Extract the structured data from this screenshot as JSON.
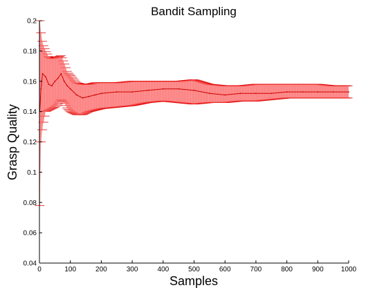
{
  "chart_data": {
    "type": "line",
    "title": "Bandit Sampling",
    "xlabel": "Samples",
    "ylabel": "Grasp Quality",
    "xlim": [
      0,
      1000
    ],
    "ylim": [
      0.04,
      0.2
    ],
    "xticks": [
      0,
      100,
      200,
      300,
      400,
      500,
      600,
      700,
      800,
      900,
      1000
    ],
    "yticks": [
      0.04,
      0.06,
      0.08,
      0.1,
      0.12,
      0.14,
      0.16,
      0.18,
      0.2
    ],
    "grid": false,
    "colors": {
      "band_fill": "#ff6b6b",
      "error_bar": "#e00000",
      "mean_line": "#cc0000",
      "axis": "#000000"
    },
    "series": [
      {
        "x": [
          1,
          5,
          10,
          20,
          30,
          40,
          50,
          60,
          70,
          80,
          90,
          100,
          120,
          140,
          160,
          180,
          200,
          250,
          300,
          350,
          400,
          450,
          500,
          550,
          600,
          650,
          700,
          750,
          800,
          850,
          900,
          950,
          1000
        ],
        "mean": [
          0.14,
          0.155,
          0.165,
          0.163,
          0.158,
          0.157,
          0.16,
          0.162,
          0.165,
          0.16,
          0.157,
          0.155,
          0.151,
          0.149,
          0.15,
          0.151,
          0.152,
          0.153,
          0.153,
          0.154,
          0.155,
          0.155,
          0.154,
          0.152,
          0.151,
          0.152,
          0.152,
          0.152,
          0.153,
          0.153,
          0.153,
          0.153,
          0.153
        ],
        "lower": [
          0.078,
          0.12,
          0.13,
          0.14,
          0.141,
          0.142,
          0.143,
          0.145,
          0.148,
          0.146,
          0.142,
          0.14,
          0.138,
          0.138,
          0.14,
          0.141,
          0.142,
          0.143,
          0.144,
          0.146,
          0.147,
          0.146,
          0.145,
          0.146,
          0.146,
          0.147,
          0.147,
          0.148,
          0.149,
          0.149,
          0.149,
          0.149,
          0.149
        ],
        "upper": [
          0.2,
          0.192,
          0.185,
          0.18,
          0.176,
          0.175,
          0.176,
          0.176,
          0.177,
          0.172,
          0.166,
          0.164,
          0.159,
          0.158,
          0.158,
          0.159,
          0.159,
          0.159,
          0.16,
          0.16,
          0.16,
          0.16,
          0.161,
          0.158,
          0.157,
          0.157,
          0.158,
          0.158,
          0.158,
          0.158,
          0.158,
          0.157,
          0.157
        ]
      }
    ]
  }
}
